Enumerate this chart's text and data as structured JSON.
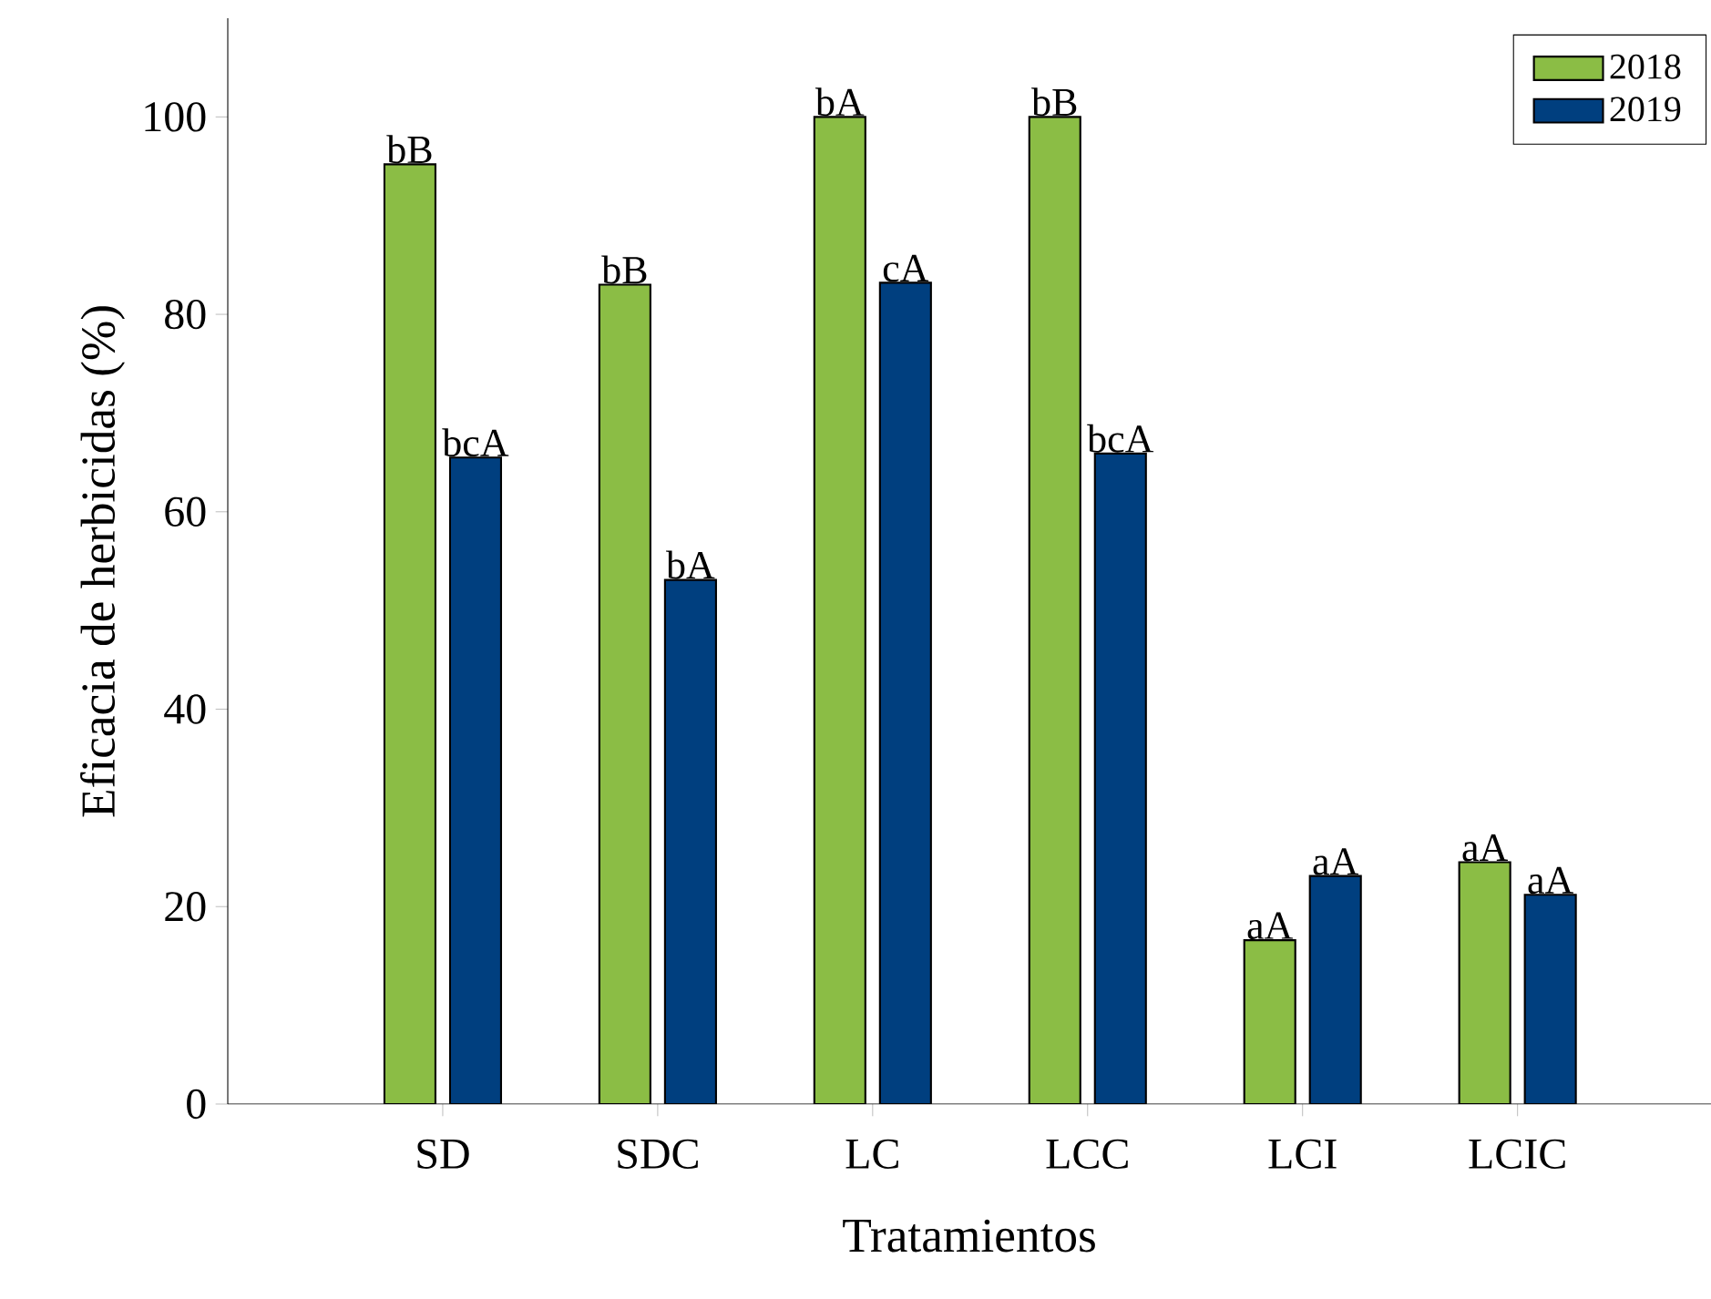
{
  "chart_data": {
    "type": "bar",
    "xlabel": "Tratamientos",
    "ylabel": "Eficacia de herbicidas (%)",
    "categories": [
      "SD",
      "SDC",
      "LC",
      "LCC",
      "LCI",
      "LCIC"
    ],
    "series": [
      {
        "name": "2018",
        "color": "#8bbd45",
        "values": [
          95.2,
          83.0,
          100,
          100,
          16.6,
          24.5
        ],
        "value_labels": [
          "bB",
          "bB",
          "bA",
          "bB",
          "aA",
          "aA"
        ]
      },
      {
        "name": "2019",
        "color": "#003f7f",
        "values": [
          65.5,
          53.1,
          83.2,
          65.9,
          23.1,
          21.2
        ],
        "value_labels": [
          "bcA",
          "bA",
          "cA",
          "bcA",
          "aA",
          "aA"
        ]
      }
    ],
    "ylim": [
      0,
      110
    ],
    "yticks": [
      0,
      20,
      40,
      60,
      80,
      100
    ],
    "legend": "top right"
  }
}
